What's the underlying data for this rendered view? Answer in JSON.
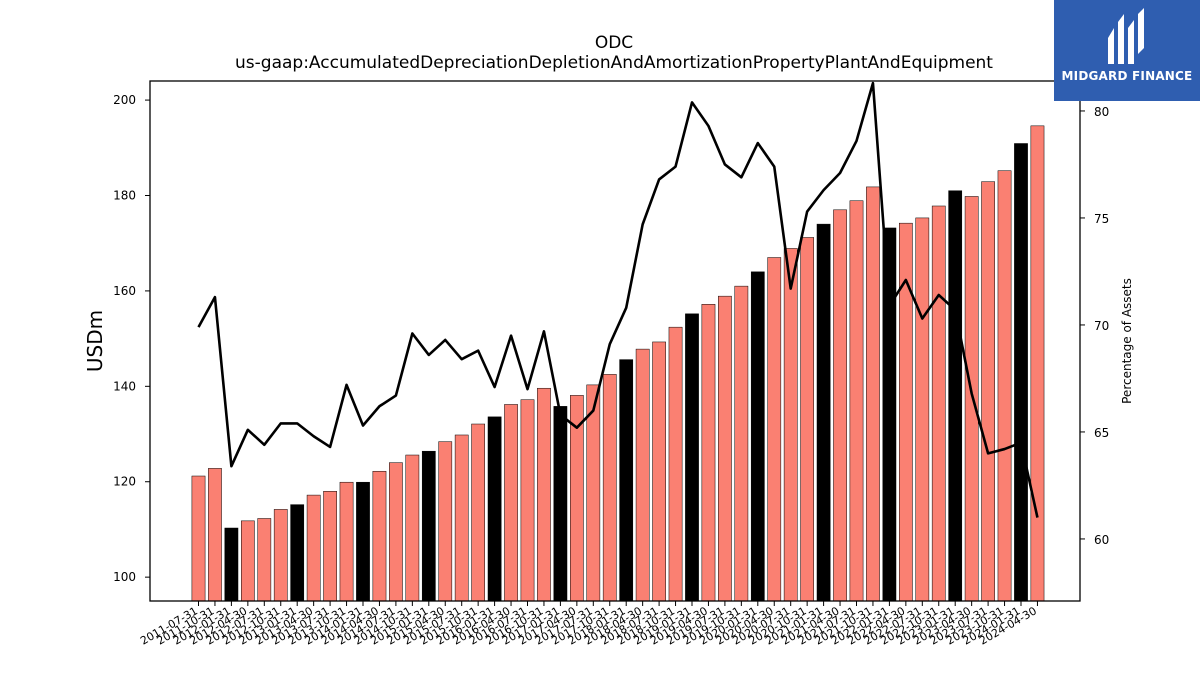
{
  "brand": {
    "name": "MIDGARD FINANCE",
    "color": "#2f5eb0"
  },
  "chart_data": {
    "type": "bar",
    "title": "ODC",
    "subtitle": "us-gaap:AccumulatedDepreciationDepletionAndAmortizationPropertyPlantAndEquipment",
    "ylabel": "USDm",
    "y2label": "Percentage of Assets",
    "ylim": [
      95,
      204
    ],
    "y2lim": [
      57.1,
      81.4
    ],
    "yticks": [
      100,
      120,
      140,
      160,
      180,
      200
    ],
    "y2ticks": [
      60,
      65,
      70,
      75,
      80
    ],
    "grid": false,
    "colors": {
      "quarter": "#fa8072",
      "year_end": "#000000",
      "line": "#000000"
    },
    "categories": [
      "2011-07-31",
      "2011-10-31",
      "2012-01-31",
      "2012-04-30",
      "2012-07-31",
      "2012-10-31",
      "2013-01-31",
      "2013-04-30",
      "2013-07-31",
      "2013-10-31",
      "2014-01-31",
      "2014-04-30",
      "2014-07-31",
      "2014-10-31",
      "2015-01-31",
      "2015-04-30",
      "2015-07-31",
      "2015-10-31",
      "2016-01-31",
      "2016-04-30",
      "2016-07-31",
      "2016-10-31",
      "2017-01-31",
      "2017-04-30",
      "2017-07-31",
      "2017-10-31",
      "2018-01-31",
      "2018-04-30",
      "2018-07-31",
      "2018-10-31",
      "2019-01-31",
      "2019-04-30",
      "2019-07-31",
      "2019-10-31",
      "2020-01-31",
      "2020-04-30",
      "2020-07-31",
      "2020-10-31",
      "2021-01-31",
      "2021-04-30",
      "2021-07-31",
      "2021-10-31",
      "2022-01-31",
      "2022-04-30",
      "2022-07-31",
      "2022-10-31",
      "2023-01-31",
      "2023-04-30",
      "2023-07-31",
      "2023-10-31",
      "2024-01-31",
      "2024-04-30"
    ],
    "series": [
      {
        "kind": "bar",
        "values": [
          121.2,
          122.8,
          110.3,
          111.8,
          112.3,
          114.2,
          115.2,
          117.2,
          118.0,
          119.9,
          119.9,
          122.2,
          124.0,
          125.6,
          126.4,
          128.4,
          129.8,
          132.1,
          133.6,
          136.2,
          137.2,
          139.6,
          135.8,
          138.1,
          140.3,
          142.5,
          145.6,
          147.8,
          149.3,
          152.4,
          155.2,
          157.2,
          158.9,
          161.0,
          164.0,
          167.0,
          168.9,
          171.2,
          174.0,
          177.0,
          178.9,
          181.8,
          173.2,
          174.2,
          175.3,
          177.8,
          181.0,
          179.8,
          182.9,
          185.2,
          190.9,
          194.6
        ],
        "year_end": [
          false,
          false,
          true,
          false,
          false,
          false,
          true,
          false,
          false,
          false,
          true,
          false,
          false,
          false,
          true,
          false,
          false,
          false,
          true,
          false,
          false,
          false,
          true,
          false,
          false,
          false,
          true,
          false,
          false,
          false,
          true,
          false,
          false,
          false,
          true,
          false,
          false,
          false,
          true,
          false,
          false,
          false,
          true,
          false,
          false,
          false,
          true,
          false,
          false,
          false,
          true,
          false
        ]
      },
      {
        "kind": "line",
        "axis": "right",
        "values": [
          69.9,
          71.3,
          63.4,
          65.1,
          64.4,
          65.4,
          65.4,
          64.8,
          64.3,
          67.2,
          65.3,
          66.2,
          66.7,
          69.6,
          68.6,
          69.3,
          68.4,
          68.8,
          67.1,
          69.5,
          67.0,
          69.7,
          65.8,
          65.2,
          66.0,
          69.1,
          70.8,
          74.7,
          76.8,
          77.4,
          80.4,
          79.3,
          77.5,
          76.9,
          78.5,
          77.4,
          71.7,
          75.3,
          76.3,
          77.1,
          78.6,
          81.3,
          70.9,
          72.1,
          70.3,
          71.4,
          70.7,
          66.8,
          64.0,
          64.2,
          64.5,
          61.0
        ]
      }
    ]
  }
}
